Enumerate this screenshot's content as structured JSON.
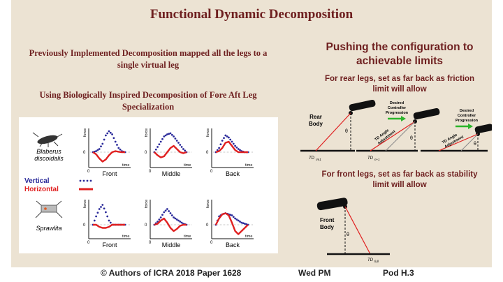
{
  "slide": {
    "title": "Functional Dynamic Decomposition",
    "left_text_1": "Previously Implemented Decomposition mapped all the legs to a single virtual leg",
    "left_text_2": "Using Biologically Inspired Decomposition of Fore Aft Leg Specialization",
    "right_heading": "Pushing the configuration to achievable limits",
    "rear_text": "For rear legs, set as far back as friction limit will allow",
    "front_text": "For front legs, set as far back as stability limit will allow"
  },
  "figure": {
    "species_1": "Blaberus discoidalis",
    "species_1a": "Blaberus",
    "species_1b": "discoidalis",
    "species_2": "Sprawlita",
    "legend_vertical": "Vertical",
    "legend_horizontal": "Horizontal",
    "axis_y": "force",
    "axis_x": "time",
    "zero": "0",
    "col_front": "Front",
    "col_middle": "Middle",
    "col_back": "Back",
    "vertical_color": "#2a2a9a",
    "horizontal_color": "#e02020"
  },
  "rear_diagram": {
    "body_label_1": "Rear",
    "body_label_2": "Body",
    "theta": "θ",
    "td_1": "TD",
    "td_1_sub": "rm1",
    "td_2": "TD",
    "td_2_sub": "n+1",
    "desired_1a": "Desired",
    "desired_1b": "Controller",
    "desired_1c": "Progression",
    "desired_2a": "Desired",
    "desired_2b": "Controller",
    "desired_2c": "Progression",
    "td_angle_1a": "TD Angle",
    "td_angle_1b": "Adjustment",
    "td_angle_2a": "TD Angle",
    "td_angle_2b": "Adjustment"
  },
  "front_diagram": {
    "body_label_1": "Front",
    "body_label_2": "Body",
    "theta": "θ",
    "td": "TD",
    "td_sub": "full"
  },
  "footer": {
    "authors": "© Authors of ICRA 2018 Paper 1628",
    "session": "Wed PM",
    "pod": "Pod H.3"
  },
  "chart_data": [
    {
      "type": "line",
      "row": "Blaberus discoidalis",
      "column": "Front",
      "series": [
        {
          "name": "Vertical",
          "style": "dotted",
          "x": [
            0,
            0.1,
            0.2,
            0.3,
            0.4,
            0.5,
            0.6,
            0.7,
            0.8,
            0.9,
            1
          ],
          "y": [
            0,
            0.05,
            0.15,
            0.4,
            0.8,
            1.0,
            0.85,
            0.5,
            0.2,
            0.05,
            0
          ]
        },
        {
          "name": "Horizontal",
          "style": "solid",
          "x": [
            0,
            0.1,
            0.2,
            0.3,
            0.4,
            0.5,
            0.6,
            0.7,
            0.8,
            0.9,
            1
          ],
          "y": [
            0,
            -0.1,
            -0.3,
            -0.45,
            -0.35,
            -0.15,
            0,
            0.05,
            0.02,
            0,
            0
          ]
        }
      ]
    },
    {
      "type": "line",
      "row": "Blaberus discoidalis",
      "column": "Middle",
      "series": [
        {
          "name": "Vertical",
          "style": "dotted",
          "x": [
            0,
            0.1,
            0.2,
            0.3,
            0.4,
            0.5,
            0.6,
            0.7,
            0.8,
            0.9,
            1
          ],
          "y": [
            0,
            0.25,
            0.5,
            0.75,
            0.85,
            0.9,
            0.75,
            0.55,
            0.35,
            0.15,
            0
          ]
        },
        {
          "name": "Horizontal",
          "style": "solid",
          "x": [
            0,
            0.1,
            0.2,
            0.3,
            0.4,
            0.5,
            0.6,
            0.7,
            0.8,
            0.9,
            1
          ],
          "y": [
            0,
            -0.15,
            -0.25,
            -0.2,
            0,
            0.2,
            0.3,
            0.15,
            0,
            -0.05,
            0
          ]
        }
      ]
    },
    {
      "type": "line",
      "row": "Blaberus discoidalis",
      "column": "Back",
      "series": [
        {
          "name": "Vertical",
          "style": "dotted",
          "x": [
            0,
            0.1,
            0.2,
            0.3,
            0.4,
            0.5,
            0.6,
            0.7,
            0.8,
            0.9,
            1
          ],
          "y": [
            0,
            0.2,
            0.55,
            0.8,
            0.7,
            0.5,
            0.3,
            0.15,
            0.05,
            0,
            0
          ]
        },
        {
          "name": "Horizontal",
          "style": "solid",
          "x": [
            0,
            0.1,
            0.2,
            0.3,
            0.4,
            0.5,
            0.6,
            0.7,
            0.8,
            0.9,
            1
          ],
          "y": [
            0,
            0.05,
            0.2,
            0.45,
            0.5,
            0.3,
            0.1,
            0,
            0,
            0,
            0
          ]
        }
      ]
    },
    {
      "type": "line",
      "row": "Sprawlita",
      "column": "Front",
      "series": [
        {
          "name": "Vertical",
          "style": "dotted",
          "x": [
            0,
            0.1,
            0.2,
            0.3,
            0.4,
            0.5,
            0.6,
            0.7,
            0.8,
            0.9,
            1
          ],
          "y": [
            0,
            0.4,
            0.75,
            0.95,
            0.6,
            0.2,
            0,
            0,
            0,
            0,
            0
          ]
        },
        {
          "name": "Horizontal",
          "style": "solid",
          "x": [
            0,
            0.1,
            0.2,
            0.3,
            0.4,
            0.5,
            0.6,
            0.7,
            0.8,
            0.9,
            1
          ],
          "y": [
            0,
            0,
            -0.1,
            -0.15,
            -0.15,
            -0.1,
            0,
            0,
            0,
            0,
            0
          ]
        }
      ]
    },
    {
      "type": "line",
      "row": "Sprawlita",
      "column": "Middle",
      "series": [
        {
          "name": "Vertical",
          "style": "dotted",
          "x": [
            0,
            0.1,
            0.2,
            0.3,
            0.4,
            0.5,
            0.6,
            0.7,
            0.8,
            0.9,
            1
          ],
          "y": [
            0,
            0.15,
            0.35,
            0.6,
            0.75,
            0.55,
            0.35,
            0.25,
            0.15,
            0.05,
            0
          ]
        },
        {
          "name": "Horizontal",
          "style": "solid",
          "x": [
            0,
            0.1,
            0.2,
            0.3,
            0.4,
            0.5,
            0.6,
            0.7,
            0.8,
            0.9,
            1
          ],
          "y": [
            0,
            0.05,
            0.2,
            0.3,
            0.1,
            -0.15,
            -0.3,
            -0.2,
            -0.05,
            0,
            0
          ]
        }
      ]
    },
    {
      "type": "line",
      "row": "Sprawlita",
      "column": "Back",
      "series": [
        {
          "name": "Vertical",
          "style": "dotted",
          "x": [
            0,
            0.1,
            0.2,
            0.3,
            0.4,
            0.5,
            0.6,
            0.7,
            0.8,
            0.9,
            1
          ],
          "y": [
            0,
            0.4,
            0.5,
            0.55,
            0.5,
            0.45,
            0.3,
            0.2,
            0.1,
            0.05,
            0
          ]
        },
        {
          "name": "Horizontal",
          "style": "solid",
          "x": [
            0,
            0.1,
            0.2,
            0.3,
            0.4,
            0.5,
            0.6,
            0.7,
            0.8,
            0.9,
            1
          ],
          "y": [
            0,
            0.3,
            0.5,
            0.55,
            0.45,
            0.1,
            -0.3,
            -0.45,
            -0.3,
            -0.15,
            0
          ]
        }
      ]
    }
  ]
}
